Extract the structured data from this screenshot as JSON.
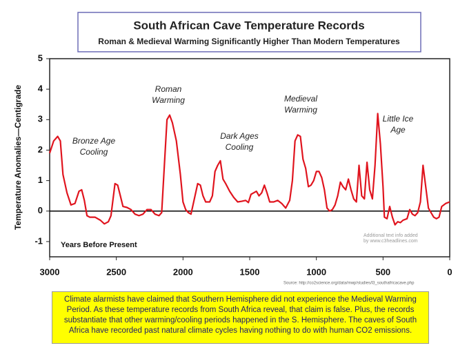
{
  "chart_data": {
    "type": "line",
    "title": "South African Cave Temperature Records",
    "subtitle": "Roman & Medieval Warming Significantly Higher Than Modern Temperatures",
    "ylabel": "Temperature Anomalies—Centigrade",
    "xlabel": "Years Before Present",
    "xlim": [
      3000,
      0
    ],
    "xticks": [
      3000,
      2500,
      2000,
      1500,
      1000,
      500,
      0
    ],
    "ylim": [
      -1.5,
      5
    ],
    "yticks": [
      -1,
      0,
      1,
      2,
      3,
      4,
      5
    ],
    "hline": 0,
    "grid": false,
    "x": [
      3000,
      2970,
      2940,
      2920,
      2900,
      2870,
      2840,
      2810,
      2780,
      2760,
      2740,
      2720,
      2700,
      2660,
      2620,
      2590,
      2560,
      2540,
      2510,
      2490,
      2470,
      2450,
      2420,
      2390,
      2360,
      2330,
      2300,
      2270,
      2240,
      2210,
      2180,
      2160,
      2140,
      2120,
      2100,
      2080,
      2050,
      2020,
      2000,
      1980,
      1960,
      1940,
      1920,
      1890,
      1870,
      1850,
      1830,
      1800,
      1780,
      1760,
      1740,
      1720,
      1700,
      1680,
      1650,
      1620,
      1590,
      1560,
      1530,
      1510,
      1490,
      1470,
      1450,
      1430,
      1410,
      1390,
      1370,
      1350,
      1320,
      1290,
      1260,
      1230,
      1200,
      1180,
      1160,
      1140,
      1120,
      1100,
      1080,
      1060,
      1040,
      1020,
      1000,
      980,
      960,
      940,
      920,
      900,
      880,
      860,
      840,
      820,
      800,
      780,
      760,
      740,
      720,
      700,
      680,
      660,
      640,
      620,
      600,
      580,
      560,
      540,
      520,
      500,
      490,
      470,
      450,
      430,
      410,
      390,
      370,
      350,
      320,
      300,
      280,
      260,
      240,
      220,
      200,
      180,
      160,
      140,
      120,
      100,
      80,
      60,
      30,
      0
    ],
    "series": [
      {
        "name": "Temperature anomaly",
        "color": "#e0141e",
        "values": [
          1.9,
          2.3,
          2.45,
          2.3,
          1.2,
          0.6,
          0.2,
          0.25,
          0.65,
          0.7,
          0.35,
          -0.15,
          -0.2,
          -0.2,
          -0.3,
          -0.42,
          -0.35,
          -0.15,
          0.9,
          0.85,
          0.5,
          0.15,
          0.12,
          0.05,
          -0.1,
          -0.15,
          -0.1,
          0.05,
          0.05,
          -0.1,
          -0.15,
          -0.05,
          1.5,
          3.0,
          3.15,
          2.9,
          2.3,
          1.2,
          0.3,
          0.05,
          -0.05,
          -0.1,
          0.3,
          0.9,
          0.85,
          0.5,
          0.3,
          0.3,
          0.5,
          1.3,
          1.5,
          1.65,
          1.05,
          0.9,
          0.65,
          0.45,
          0.3,
          0.32,
          0.35,
          0.28,
          0.55,
          0.6,
          0.65,
          0.5,
          0.6,
          0.85,
          0.6,
          0.3,
          0.3,
          0.35,
          0.25,
          0.1,
          0.35,
          1.0,
          2.3,
          2.5,
          2.45,
          1.7,
          1.4,
          0.8,
          0.85,
          1.0,
          1.3,
          1.3,
          1.1,
          0.7,
          0.1,
          0.0,
          0.05,
          0.2,
          0.5,
          0.95,
          0.8,
          0.7,
          1.05,
          0.7,
          0.4,
          0.3,
          1.5,
          0.5,
          0.4,
          1.6,
          0.7,
          0.4,
          1.5,
          3.2,
          2.2,
          0.8,
          -0.2,
          -0.25,
          0.15,
          -0.2,
          -0.45,
          -0.35,
          -0.38,
          -0.3,
          -0.25,
          0.05,
          -0.1,
          -0.15,
          -0.05,
          0.3,
          1.5,
          0.8,
          0.1,
          -0.05,
          -0.2,
          -0.25,
          -0.2,
          0.15,
          0.25,
          0.3
        ]
      }
    ],
    "annotations": [
      [
        "Bronze Age",
        "Cooling"
      ],
      [
        "Roman",
        "Warming"
      ],
      [
        "Dark Ages",
        "Cooling"
      ],
      [
        "Medieval",
        "Warming"
      ],
      [
        "Little Ice",
        "Age"
      ]
    ],
    "watermark": [
      "Additional text info added",
      "by www.c3headlines.com"
    ],
    "source": "Source: http://co2science.org/data/mwp/studies/l3_southafricacave.php"
  },
  "caption": "Climate alarmists have claimed that Southern Hemisphere did not experience the Medieval Warming Period. As these temperature records from South Africa reveal, that claim is false. Plus, the records substantiate that other warming/cooling periods happened in the S. Hemisphere. The caves of South Africa have recorded past natural climate cycles having nothing to do with human CO2 emissions."
}
